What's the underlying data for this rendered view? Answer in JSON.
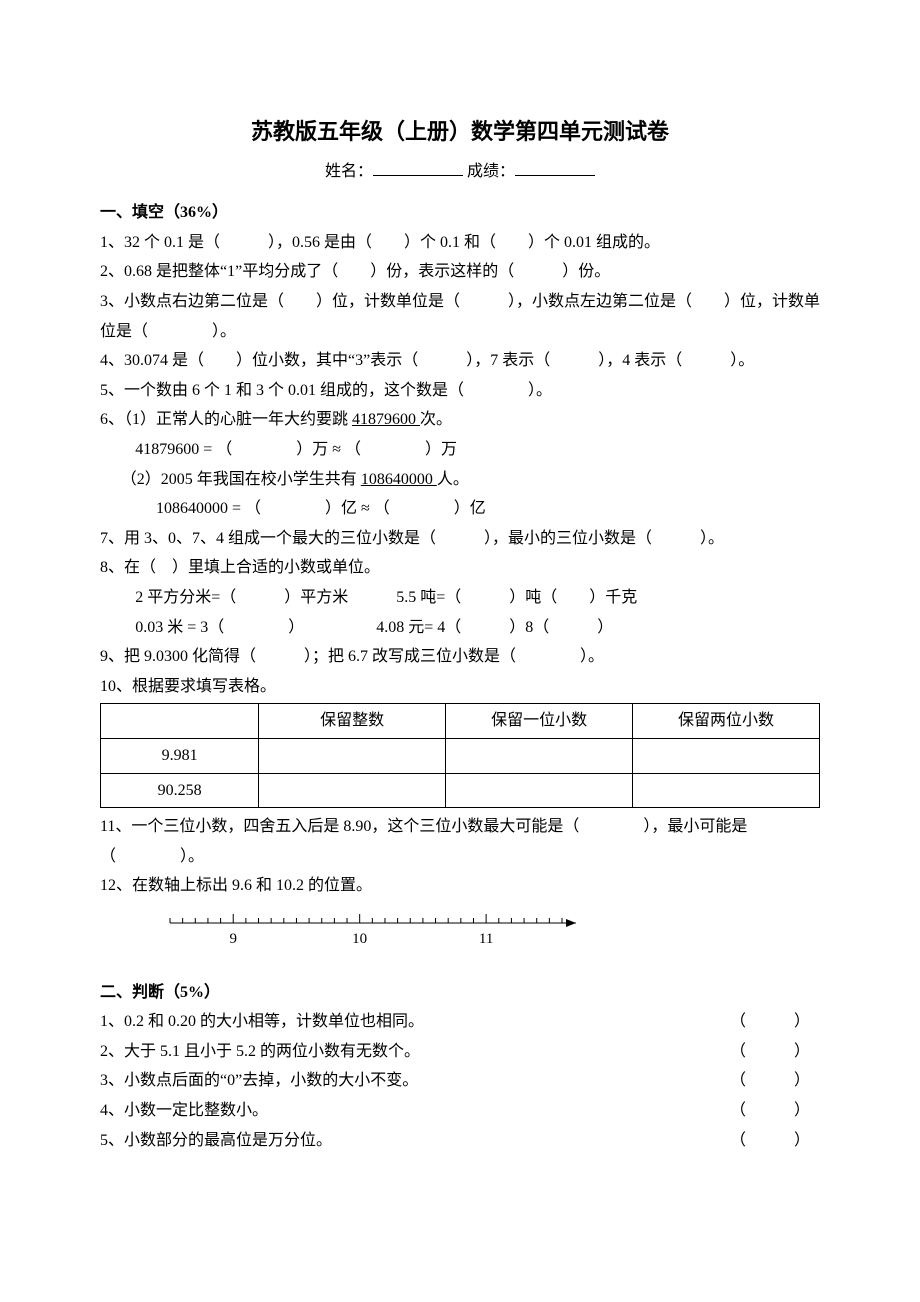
{
  "doc": {
    "title": "苏教版五年级（上册）数学第四单元测试卷",
    "name_label": "姓名：",
    "score_label": "成绩：",
    "background_color": "#ffffff",
    "text_color": "#000000",
    "title_fontsize": 22,
    "body_fontsize": 16
  },
  "s1": {
    "header": "一、填空（36%）",
    "q1": "1、32 个 0.1 是（　　　），0.56 是由（　　）个 0.1 和（　　）个 0.01 组成的。",
    "q2": "2、0.68 是把整体“1”平均分成了（　　）份，表示这样的（　　　）份。",
    "q3": "3、小数点右边第二位是（　　）位，计数单位是（　　　），小数点左边第二位是（　　）位，计数单位是（　　　　）。",
    "q4": "4、30.074 是（　　）位小数，其中“3”表示（　　　），7 表示（　　　），4 表示（　　　）。",
    "q5": "5、一个数由 6 个 1 和 3 个 0.01 组成的，这个数是（　　　　）。",
    "q6_head": "6、（1）正常人的心脏一年大约要跳 ",
    "q6_num1": "41879600 ",
    "q6_tail1": "次。",
    "q6_line2": "41879600 = （　　　　）万 ≈ （　　　　）万",
    "q6_sub2_head": "（2）2005 年我国在校小学生共有 ",
    "q6_num2": "108640000 ",
    "q6_tail2": "人。",
    "q6_line4": "108640000 = （　　　　）亿 ≈ （　　　　）亿",
    "q7": "7、用 3、0、7、4 组成一个最大的三位小数是（　　　），最小的三位小数是（　　　）。",
    "q8_head": "8、在（　）里填上合适的小数或单位。",
    "q8_l1": "2 平方分米=（　　　）平方米　　　5.5 吨=（　　　）吨（　　）千克",
    "q8_l2": "0.03 米 = 3（　　　　）　　　　　4.08 元= 4（　　　）8（　　　）",
    "q9": "9、把 9.0300 化简得（　　　）；把 6.7 改写成三位小数是（　　　　）。",
    "q10_head": "10、根据要求填写表格。",
    "table": {
      "columns": [
        "",
        "保留整数",
        "保留一位小数",
        "保留两位小数"
      ],
      "rows": [
        [
          "9.981",
          "",
          "",
          ""
        ],
        [
          "90.258",
          "",
          "",
          ""
        ]
      ],
      "border_color": "#000000"
    },
    "q11": "11、一个三位小数，四舍五入后是 8.90，这个三位小数最大可能是（　　　　），最小可能是（　　　　）。",
    "q12": "12、在数轴上标出 9.6 和 10.2 的位置。",
    "numline": {
      "start": 8.5,
      "end": 11.6,
      "major_ticks": [
        9,
        10,
        11
      ],
      "minor_step": 0.1,
      "tick_height_major": 9,
      "tick_height_minor": 5,
      "line_color": "#000000",
      "font_size": 15
    }
  },
  "s2": {
    "header": "二、判断（5%）",
    "items": [
      {
        "text": "1、0.2 和 0.20 的大小相等，计数单位也相同。",
        "paren": "（　　　）"
      },
      {
        "text": "2、大于 5.1 且小于 5.2 的两位小数有无数个。",
        "paren": "（　　　）"
      },
      {
        "text": "3、小数点后面的“0”去掉，小数的大小不变。",
        "paren": "（　　　）"
      },
      {
        "text": "4、小数一定比整数小。",
        "paren": "（　　　）"
      },
      {
        "text": "5、小数部分的最高位是万分位。",
        "paren": "（　　　）"
      }
    ]
  }
}
